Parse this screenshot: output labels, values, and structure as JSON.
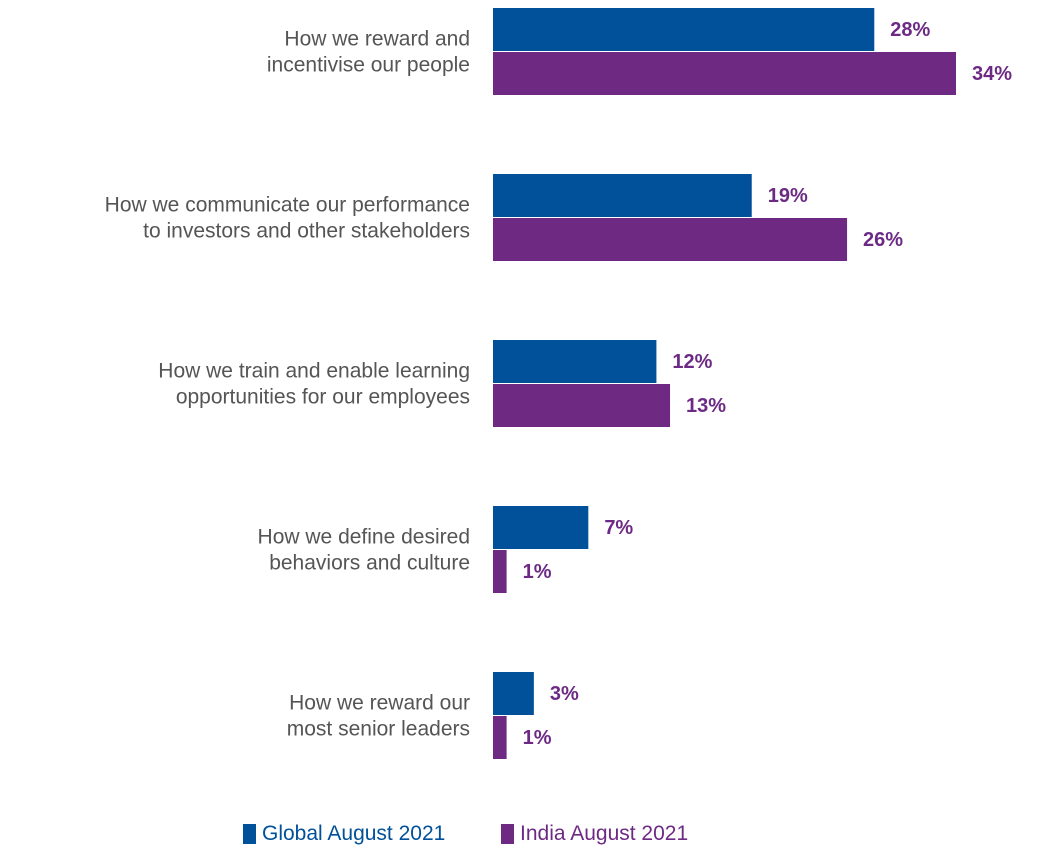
{
  "chart_data": {
    "type": "bar",
    "orientation": "horizontal",
    "categories": [
      [
        "How we reward and",
        "incentivise our people"
      ],
      [
        "How we communicate our performance",
        "to investors and other stakeholders"
      ],
      [
        "How we train and enable learning",
        "opportunities for our employees"
      ],
      [
        "How we define desired",
        "behaviors and culture"
      ],
      [
        "How we reward our",
        "most senior leaders"
      ]
    ],
    "series": [
      {
        "name": "Global August 2021",
        "values": [
          28,
          19,
          12,
          7,
          3
        ],
        "color": "#00509a"
      },
      {
        "name": "India August 2021",
        "values": [
          34,
          26,
          13,
          1,
          1
        ],
        "color": "#6e2a83"
      }
    ],
    "value_suffix": "%",
    "value_label_color": "#6d2a84",
    "xlim": [
      0,
      34
    ],
    "grid": false,
    "legend_position": "bottom"
  }
}
